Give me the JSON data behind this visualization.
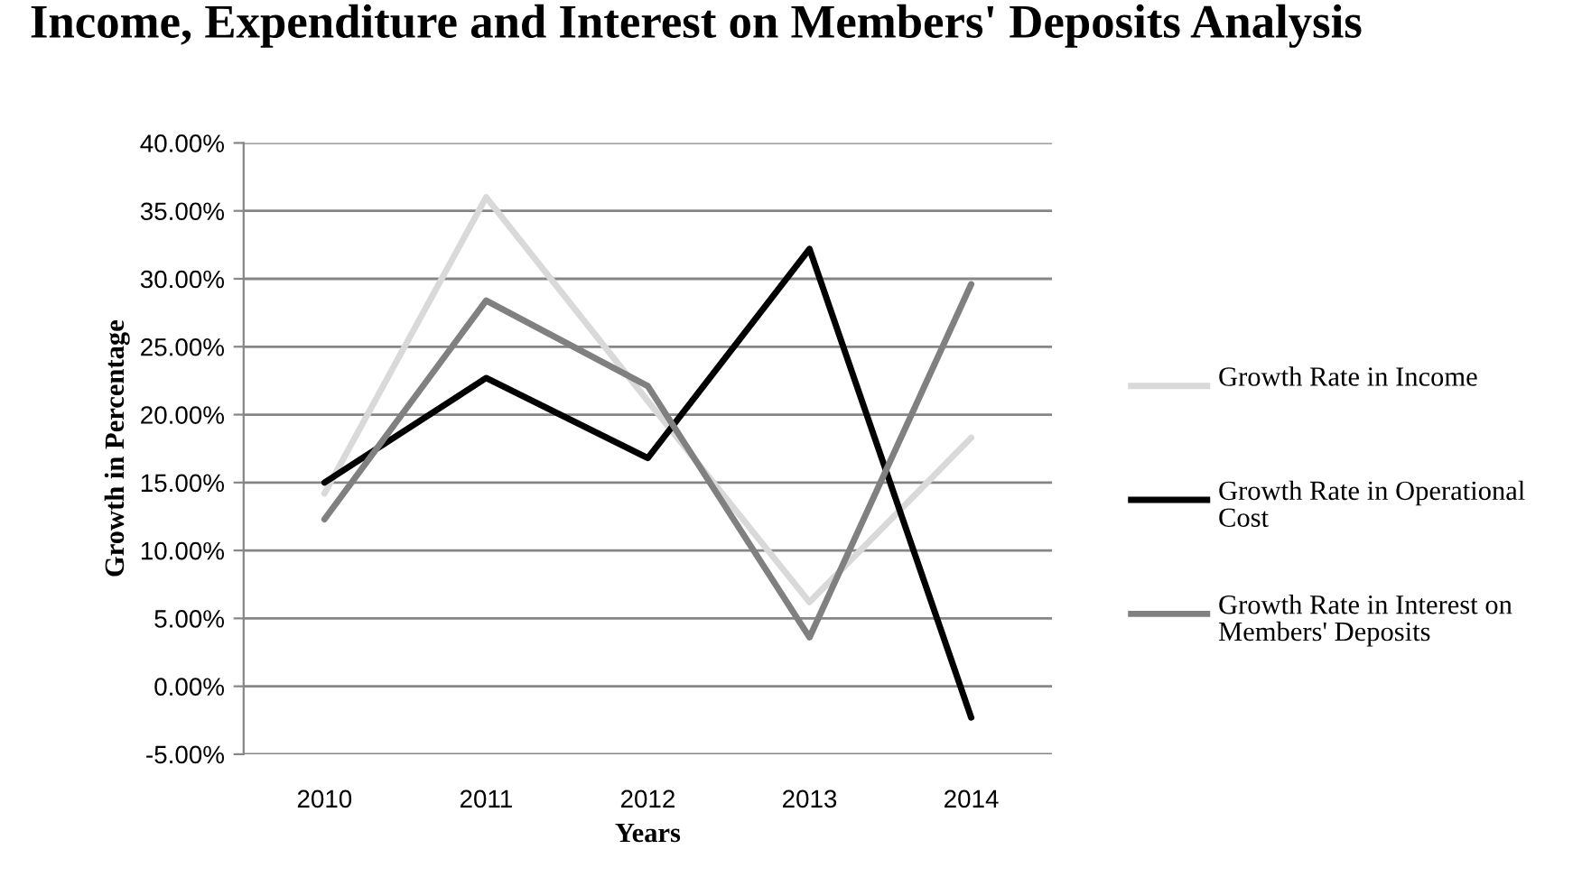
{
  "chart_data": {
    "type": "line",
    "title": "Income, Expenditure and Interest on Members' Deposits Analysis",
    "xlabel": "Years",
    "ylabel": "Growth in Percentage",
    "categories": [
      "2010",
      "2011",
      "2012",
      "2013",
      "2014"
    ],
    "series": [
      {
        "name": "Growth Rate in Income",
        "color": "#d9d9d9",
        "values": [
          14.2,
          36.0,
          21.0,
          6.2,
          18.3
        ]
      },
      {
        "name": "Growth Rate in Operational Cost",
        "color": "#000000",
        "values": [
          15.0,
          22.7,
          16.8,
          32.2,
          -2.3
        ]
      },
      {
        "name": "Growth Rate in Interest on Members' Deposits",
        "color": "#808080",
        "values": [
          12.3,
          28.4,
          22.1,
          3.6,
          29.6
        ]
      }
    ],
    "ylim": [
      -5,
      40
    ],
    "yticks": [
      {
        "value": -5,
        "label": "-5.00%"
      },
      {
        "value": 0,
        "label": "0.00%"
      },
      {
        "value": 5,
        "label": "5.00%"
      },
      {
        "value": 10,
        "label": "10.00%"
      },
      {
        "value": 15,
        "label": "15.00%"
      },
      {
        "value": 20,
        "label": "20.00%"
      },
      {
        "value": 25,
        "label": "25.00%"
      },
      {
        "value": 30,
        "label": "30.00%"
      },
      {
        "value": 35,
        "label": "35.00%"
      },
      {
        "value": 40,
        "label": "40.00%"
      }
    ],
    "grid": "y",
    "legend": "right",
    "marker": "none",
    "line_style": "solid"
  }
}
